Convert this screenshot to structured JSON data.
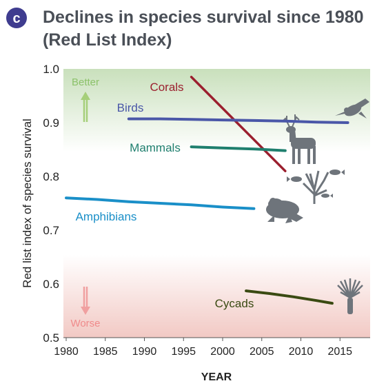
{
  "header": {
    "badge": "c",
    "title_line1": "Declines in species survival since 1980",
    "title_line2": "(Red List Index)"
  },
  "colors": {
    "badge_bg": "#3f3c8f",
    "title": "#4a4f57",
    "better_band": "#cfe3c4",
    "worse_band": "#f3cfcb",
    "better_arrow": "#a6cf7a",
    "worse_arrow": "#f0a0a0",
    "silhouette": "#6e747b",
    "axis_text": "#222222"
  },
  "icons": [
    "hummingbird-icon",
    "deer-icon",
    "coral-fish-icon",
    "frog-icon",
    "cycad-palm-icon"
  ],
  "chart_data": {
    "type": "line",
    "title": "Declines in species survival since 1980 (Red List Index)",
    "xlabel": "YEAR",
    "ylabel": "Red list index of species survival",
    "xlim": [
      1980,
      2018
    ],
    "ylim": [
      0.5,
      1.0
    ],
    "xticks": [
      1980,
      1985,
      1990,
      1995,
      2000,
      2005,
      2010,
      2015
    ],
    "yticks": [
      0.5,
      0.6,
      0.7,
      0.8,
      0.9,
      1.0
    ],
    "ytick_labels": [
      "0.5",
      "0.6",
      "0.7",
      "0.8",
      "0.9",
      "1.0"
    ],
    "annotations": {
      "better": "Better",
      "worse": "Worse"
    },
    "series": [
      {
        "name": "Corals",
        "color": "#9b1f2e",
        "x": [
          1996,
          2008
        ],
        "y": [
          0.985,
          0.81
        ]
      },
      {
        "name": "Birds",
        "color": "#4a57a8",
        "x": [
          1988,
          1992,
          1996,
          2000,
          2004,
          2008,
          2012,
          2016
        ],
        "y": [
          0.907,
          0.907,
          0.906,
          0.905,
          0.904,
          0.903,
          0.901,
          0.9
        ]
      },
      {
        "name": "Mammals",
        "color": "#1f7f6e",
        "x": [
          1996,
          2000,
          2004,
          2008
        ],
        "y": [
          0.855,
          0.853,
          0.851,
          0.848
        ]
      },
      {
        "name": "Amphibians",
        "color": "#1a8fc8",
        "x": [
          1980,
          1984,
          1988,
          1992,
          1996,
          2000,
          2004
        ],
        "y": [
          0.76,
          0.757,
          0.753,
          0.75,
          0.747,
          0.743,
          0.74
        ]
      },
      {
        "name": "Cycads",
        "color": "#3a4a12",
        "x": [
          2003,
          2006,
          2009,
          2012,
          2014
        ],
        "y": [
          0.587,
          0.582,
          0.576,
          0.569,
          0.564
        ]
      }
    ]
  }
}
